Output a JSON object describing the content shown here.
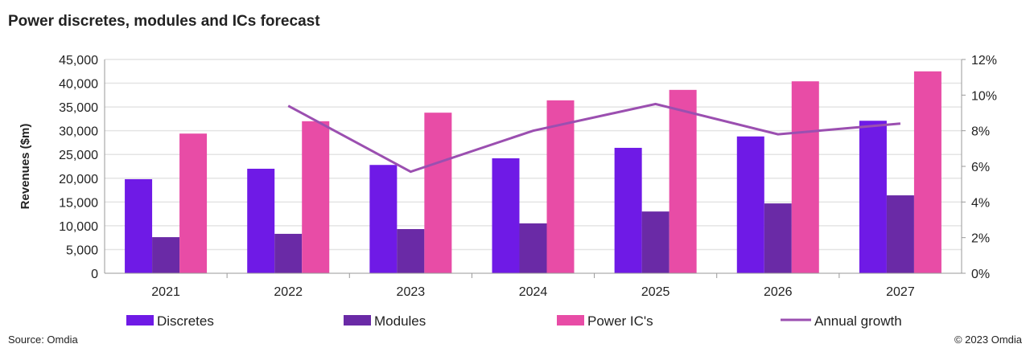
{
  "title": "Power discretes, modules and ICs forecast",
  "source": "Source: Omdia",
  "copyright": "© 2023 Omdia",
  "chart_data": {
    "type": "bar",
    "title": "Power discretes, modules and ICs forecast",
    "ylabel": "Revenues ($m)",
    "y2label": "",
    "categories": [
      "2021",
      "2022",
      "2023",
      "2024",
      "2025",
      "2026",
      "2027"
    ],
    "ylim": [
      0,
      45000
    ],
    "yticks": [
      "0",
      "5,000",
      "10,000",
      "15,000",
      "20,000",
      "25,000",
      "30,000",
      "35,000",
      "40,000",
      "45,000"
    ],
    "y2lim": [
      0,
      12
    ],
    "y2ticks": [
      "0%",
      "2%",
      "4%",
      "6%",
      "8%",
      "10%",
      "12%"
    ],
    "grid": true,
    "legend": "bottom",
    "series": [
      {
        "name": "Discretes",
        "type": "bar",
        "color": "#6f1ae6",
        "values": [
          19800,
          22000,
          22800,
          24200,
          26400,
          28800,
          32100
        ]
      },
      {
        "name": "Modules",
        "type": "bar",
        "color": "#6a2aa6",
        "values": [
          7600,
          8300,
          9300,
          10500,
          13000,
          14700,
          16400
        ]
      },
      {
        "name": "Power IC's",
        "type": "bar",
        "color": "#e84ca6",
        "values": [
          29400,
          32000,
          33800,
          36400,
          38600,
          40400,
          42500
        ]
      },
      {
        "name": "Annual growth",
        "type": "line",
        "axis": "right",
        "color": "#9b4fb0",
        "values": [
          null,
          9.4,
          5.7,
          8.0,
          9.5,
          7.8,
          8.4
        ]
      }
    ]
  }
}
